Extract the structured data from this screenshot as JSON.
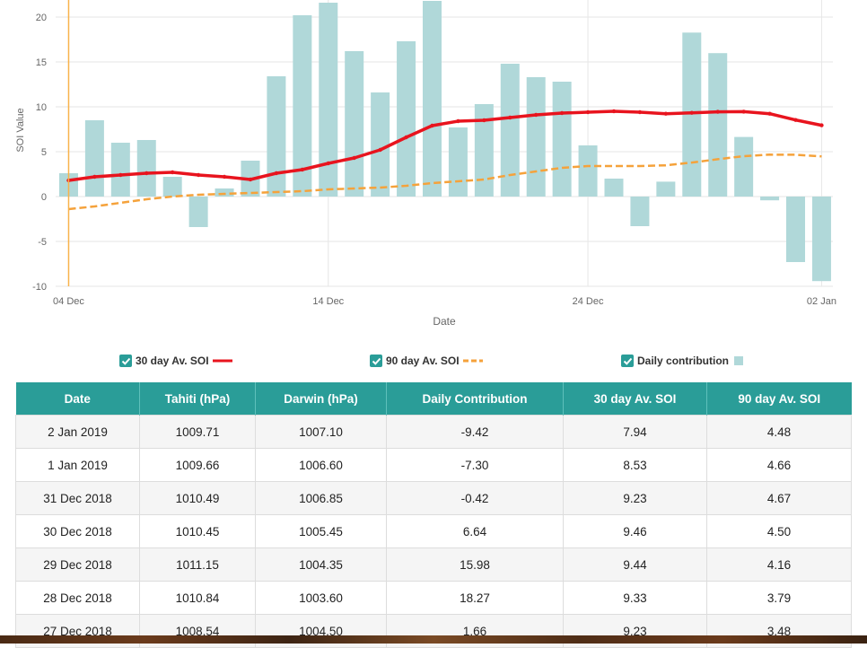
{
  "chart_data": {
    "type": "bar",
    "xlabel": "Date",
    "ylabel": "SOI Value",
    "ylim": [
      -10,
      22
    ],
    "yticks": [
      -10,
      -5,
      0,
      5,
      10,
      15,
      20
    ],
    "x": [
      "4 Dec 2018",
      "5 Dec 2018",
      "6 Dec 2018",
      "7 Dec 2018",
      "8 Dec 2018",
      "9 Dec 2018",
      "10 Dec 2018",
      "11 Dec 2018",
      "12 Dec 2018",
      "13 Dec 2018",
      "14 Dec 2018",
      "15 Dec 2018",
      "16 Dec 2018",
      "17 Dec 2018",
      "18 Dec 2018",
      "19 Dec 2018",
      "20 Dec 2018",
      "21 Dec 2018",
      "22 Dec 2018",
      "23 Dec 2018",
      "24 Dec 2018",
      "25 Dec 2018",
      "26 Dec 2018",
      "27 Dec 2018",
      "28 Dec 2018",
      "29 Dec 2018",
      "30 Dec 2018",
      "31 Dec 2018",
      "1 Jan 2019",
      "2 Jan 2019"
    ],
    "xticks": [
      {
        "index": 0,
        "label": "04 Dec"
      },
      {
        "index": 10,
        "label": "14 Dec"
      },
      {
        "index": 20,
        "label": "24 Dec"
      },
      {
        "index": 29,
        "label": "02 Jan"
      }
    ],
    "series": [
      {
        "name": "Daily contribution",
        "kind": "bar",
        "color": "#b0d8d9",
        "values": [
          2.6,
          8.5,
          6.0,
          6.3,
          2.2,
          -3.4,
          0.9,
          4.0,
          13.4,
          20.2,
          21.6,
          16.2,
          11.6,
          17.3,
          21.8,
          7.7,
          10.3,
          14.8,
          13.3,
          12.8,
          5.7,
          2.0,
          -3.3,
          1.66,
          18.27,
          15.98,
          6.64,
          -0.42,
          -7.3,
          -9.42
        ]
      },
      {
        "name": "30 day Av. SOI",
        "kind": "line",
        "color": "#e8141e",
        "values": [
          1.8,
          2.2,
          2.4,
          2.6,
          2.7,
          2.4,
          2.2,
          1.9,
          2.6,
          3.0,
          3.7,
          4.3,
          5.2,
          6.6,
          7.9,
          8.4,
          8.5,
          8.8,
          9.1,
          9.3,
          9.4,
          9.5,
          9.4,
          9.23,
          9.33,
          9.44,
          9.46,
          9.23,
          8.53,
          7.94
        ]
      },
      {
        "name": "90 day Av. SOI",
        "kind": "dashed-line",
        "color": "#f5a23b",
        "values": [
          -1.4,
          -1.1,
          -0.7,
          -0.3,
          0.0,
          0.2,
          0.3,
          0.4,
          0.5,
          0.6,
          0.8,
          0.9,
          1.0,
          1.2,
          1.5,
          1.7,
          1.9,
          2.4,
          2.8,
          3.2,
          3.4,
          3.4,
          3.4,
          3.48,
          3.79,
          4.16,
          4.5,
          4.67,
          4.66,
          4.48
        ]
      }
    ],
    "marker_index": 0,
    "colors": {
      "grid": "#e6e6e6",
      "axis_text": "#666666",
      "marker": "#f8b24a"
    }
  },
  "legend": {
    "items": [
      {
        "label": "30 day Av. SOI"
      },
      {
        "label": "90 day Av. SOI"
      },
      {
        "label": "Daily contribution"
      }
    ]
  },
  "table": {
    "headers": [
      "Date",
      "Tahiti (hPa)",
      "Darwin (hPa)",
      "Daily Contribution",
      "30 day Av. SOI",
      "90 day Av. SOI"
    ],
    "rows": [
      [
        "2 Jan 2019",
        "1009.71",
        "1007.10",
        "-9.42",
        "7.94",
        "4.48"
      ],
      [
        "1 Jan 2019",
        "1009.66",
        "1006.60",
        "-7.30",
        "8.53",
        "4.66"
      ],
      [
        "31 Dec 2018",
        "1010.49",
        "1006.85",
        "-0.42",
        "9.23",
        "4.67"
      ],
      [
        "30 Dec 2018",
        "1010.45",
        "1005.45",
        "6.64",
        "9.46",
        "4.50"
      ],
      [
        "29 Dec 2018",
        "1011.15",
        "1004.35",
        "15.98",
        "9.44",
        "4.16"
      ],
      [
        "28 Dec 2018",
        "1010.84",
        "1003.60",
        "18.27",
        "9.33",
        "3.79"
      ],
      [
        "27 Dec 2018",
        "1008.54",
        "1004.50",
        "1.66",
        "9.23",
        "3.48"
      ]
    ]
  }
}
